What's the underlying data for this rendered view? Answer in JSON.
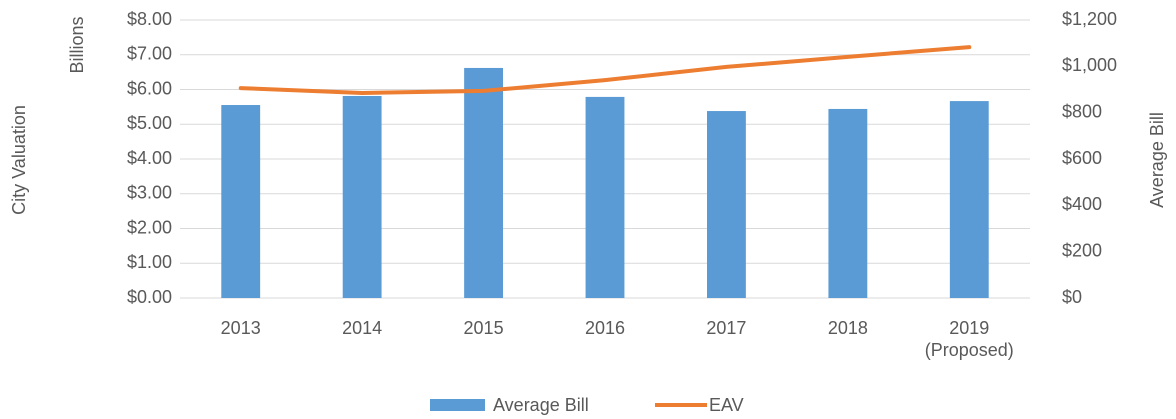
{
  "chart_data": {
    "type": "bar_line",
    "y_label": "City Valuation",
    "y_unit_label": "Billions",
    "y2_label": "Average Bill",
    "categories": [
      "2013",
      "2014",
      "2015",
      "2016",
      "2017",
      "2018",
      "2019\n(Proposed)"
    ],
    "series": [
      {
        "name": "Average Bill",
        "type": "bar",
        "axis": "y2",
        "color": "#5b9bd5",
        "values": [
          833,
          872,
          993,
          868,
          807,
          816,
          850
        ]
      },
      {
        "name": "EAV",
        "type": "line",
        "axis": "y",
        "color": "#ed7d31",
        "values": [
          6.04,
          5.9,
          5.96,
          6.27,
          6.65,
          6.94,
          7.22
        ]
      }
    ],
    "ylim": [
      0,
      8
    ],
    "yticks": [
      {
        "value": 0,
        "label": "$0.00"
      },
      {
        "value": 1,
        "label": "$1.00"
      },
      {
        "value": 2,
        "label": "$2.00"
      },
      {
        "value": 3,
        "label": "$3.00"
      },
      {
        "value": 4,
        "label": "$4.00"
      },
      {
        "value": 5,
        "label": "$5.00"
      },
      {
        "value": 6,
        "label": "$6.00"
      },
      {
        "value": 7,
        "label": "$7.00"
      },
      {
        "value": 8,
        "label": "$8.00"
      }
    ],
    "y2lim": [
      0,
      1200
    ],
    "y2ticks": [
      {
        "value": 0,
        "label": "$0"
      },
      {
        "value": 200,
        "label": "$200"
      },
      {
        "value": 400,
        "label": "$400"
      },
      {
        "value": 600,
        "label": "$600"
      },
      {
        "value": 800,
        "label": "$800"
      },
      {
        "value": 1000,
        "label": "$1,000"
      },
      {
        "value": 1200,
        "label": "$1,200"
      }
    ],
    "grid": true,
    "legend": "bottom"
  }
}
